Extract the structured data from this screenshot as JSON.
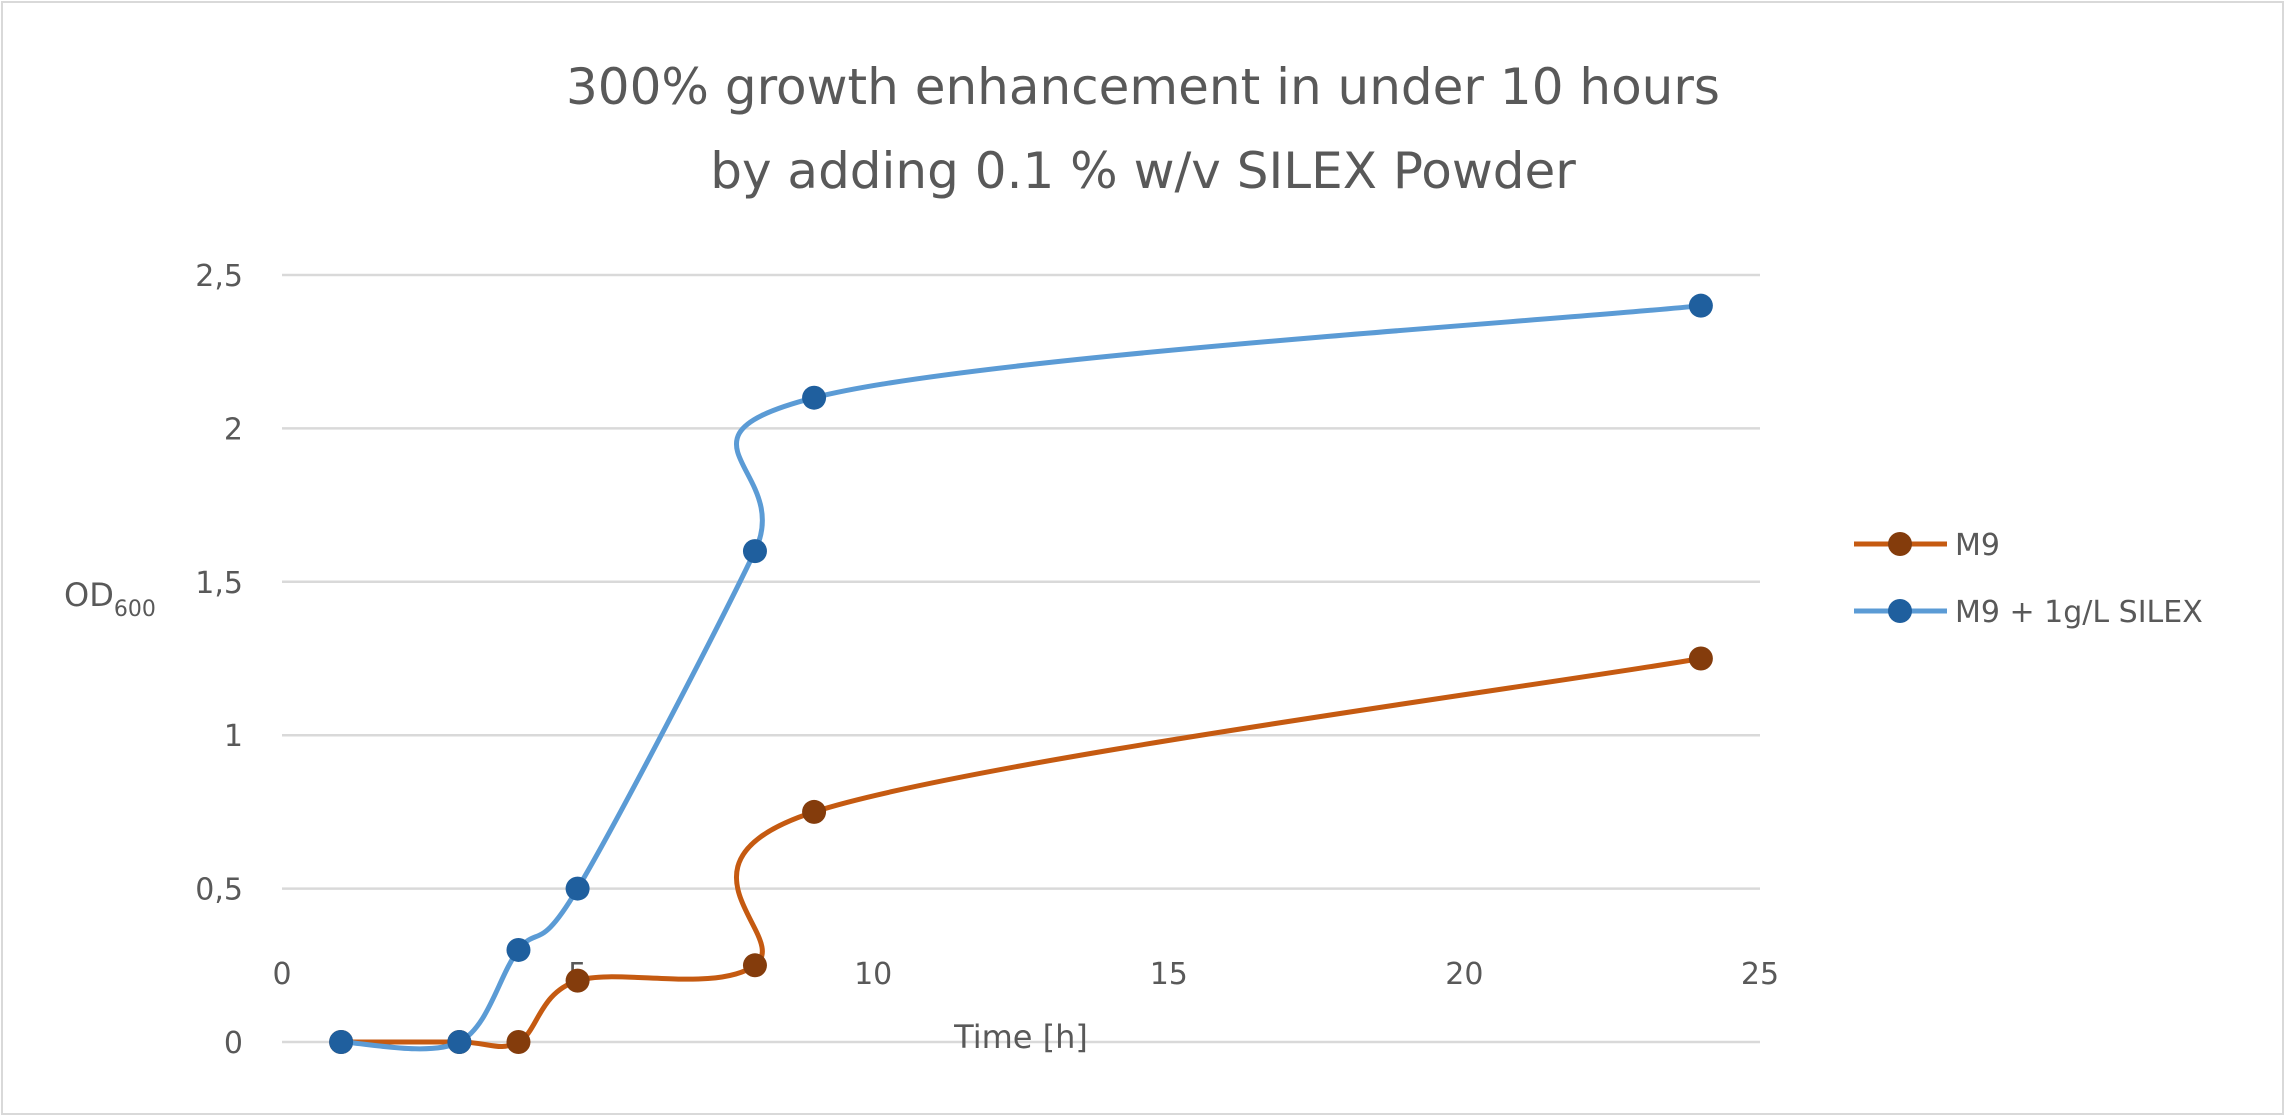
{
  "chart_data": {
    "type": "line",
    "title": [
      "300% growth enhancement in under 10 hours",
      "by adding 0.1 % w/v SILEX Powder"
    ],
    "xlabel": "Time [h]",
    "ylabel": {
      "main": "OD",
      "subscript": "600"
    },
    "xlim": [
      0,
      25
    ],
    "ylim": [
      0,
      2.5
    ],
    "xticks": [
      "0",
      "5",
      "10",
      "15",
      "20",
      "25"
    ],
    "yticks": [
      "0",
      "0,5",
      "1",
      "1,5",
      "2",
      "2,5"
    ],
    "grid": "horizontal",
    "smoothed": true,
    "legend_position": "right",
    "series": [
      {
        "name": "M9",
        "line_color": "#C55A11",
        "marker_color": "#843C0C",
        "x": [
          1,
          3,
          4,
          5,
          8,
          9,
          24
        ],
        "y": [
          0,
          0,
          0,
          0.2,
          0.25,
          0.75,
          1.25
        ]
      },
      {
        "name": "M9 + 1g/L SILEX",
        "line_color": "#5B9BD5",
        "marker_color": "#1F5F9E",
        "x": [
          1,
          3,
          4,
          5,
          8,
          9,
          24
        ],
        "y": [
          0,
          0,
          0.3,
          0.5,
          1.6,
          2.1,
          2.4
        ]
      }
    ]
  }
}
